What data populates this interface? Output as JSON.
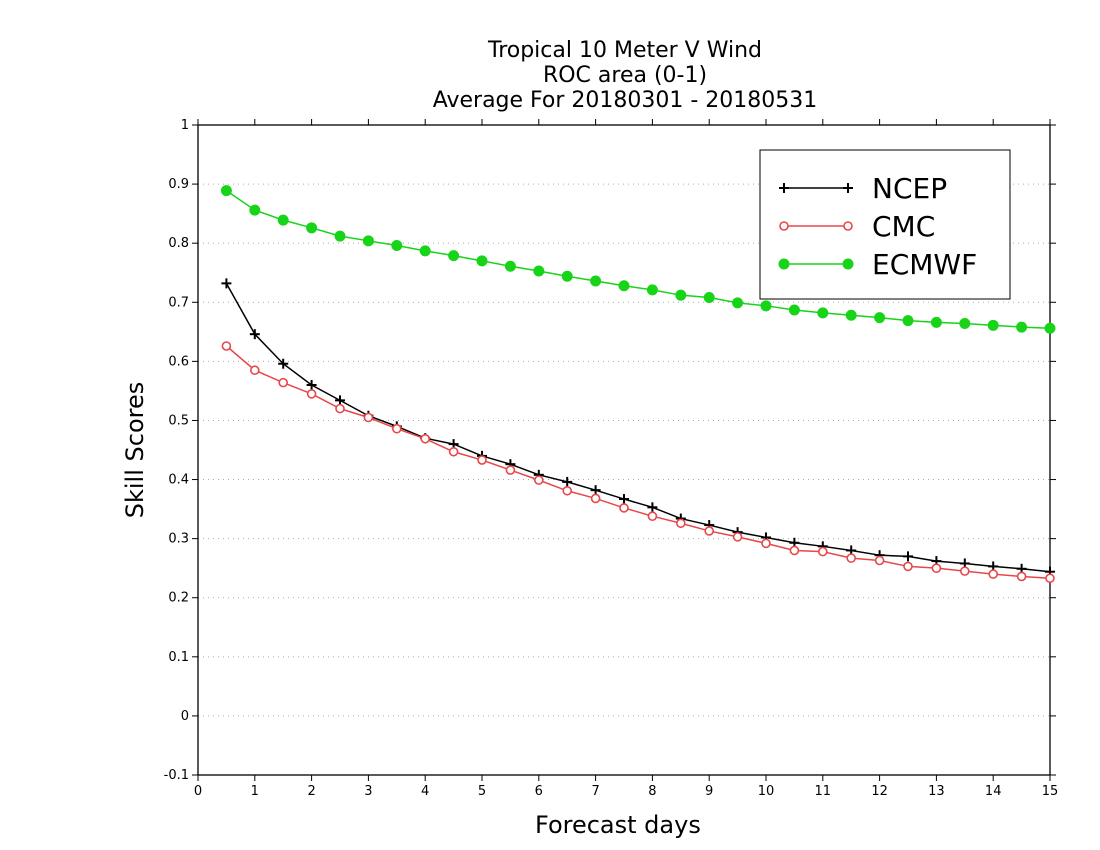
{
  "chart_data": {
    "type": "line",
    "title": [
      "Tropical 10 Meter V Wind",
      "ROC area (0-1)",
      "Average For 20180301 - 20180531"
    ],
    "xlabel": "Forecast days",
    "ylabel": "Skill Scores",
    "xlim": [
      0,
      15
    ],
    "ylim": [
      -0.1,
      1
    ],
    "xticks": [
      0,
      1,
      2,
      3,
      4,
      5,
      6,
      7,
      8,
      9,
      10,
      11,
      12,
      13,
      14,
      15
    ],
    "yticks": [
      -0.1,
      0,
      0.1,
      0.2,
      0.3,
      0.4,
      0.5,
      0.6,
      0.7,
      0.8,
      0.9,
      1
    ],
    "ytick_labels": [
      "-0.1",
      "0",
      "0.1",
      "0.2",
      "0.3",
      "0.4",
      "0.5",
      "0.6",
      "0.7",
      "0.8",
      "0.9",
      "1"
    ],
    "grid": "horizontal dotted",
    "legend_position": "top-right",
    "x": [
      0.5,
      1,
      1.5,
      2,
      2.5,
      3,
      3.5,
      4,
      4.5,
      5,
      5.5,
      6,
      6.5,
      7,
      7.5,
      8,
      8.5,
      9,
      9.5,
      10,
      10.5,
      11,
      11.5,
      12,
      12.5,
      13,
      13.5,
      14,
      14.5,
      15
    ],
    "series": [
      {
        "name": "NCEP",
        "color": "#000000",
        "marker": "plus",
        "values": [
          0.732,
          0.646,
          0.596,
          0.56,
          0.534,
          0.508,
          0.49,
          0.47,
          0.46,
          0.44,
          0.426,
          0.408,
          0.396,
          0.382,
          0.367,
          0.353,
          0.334,
          0.323,
          0.311,
          0.302,
          0.293,
          0.287,
          0.28,
          0.272,
          0.27,
          0.262,
          0.258,
          0.253,
          0.249,
          0.244
        ]
      },
      {
        "name": "CMC",
        "color": "#e8474a",
        "marker": "open-circle",
        "values": [
          0.626,
          0.585,
          0.564,
          0.545,
          0.52,
          0.505,
          0.486,
          0.469,
          0.447,
          0.433,
          0.416,
          0.399,
          0.381,
          0.368,
          0.352,
          0.338,
          0.326,
          0.313,
          0.303,
          0.292,
          0.28,
          0.278,
          0.267,
          0.263,
          0.253,
          0.25,
          0.245,
          0.24,
          0.236,
          0.233
        ]
      },
      {
        "name": "ECMWF",
        "color": "#18d418",
        "marker": "filled-circle",
        "values": [
          0.889,
          0.856,
          0.839,
          0.826,
          0.812,
          0.804,
          0.796,
          0.787,
          0.779,
          0.77,
          0.761,
          0.753,
          0.744,
          0.736,
          0.728,
          0.721,
          0.712,
          0.708,
          0.699,
          0.694,
          0.687,
          0.682,
          0.678,
          0.674,
          0.669,
          0.666,
          0.664,
          0.661,
          0.658,
          0.656
        ]
      }
    ]
  }
}
